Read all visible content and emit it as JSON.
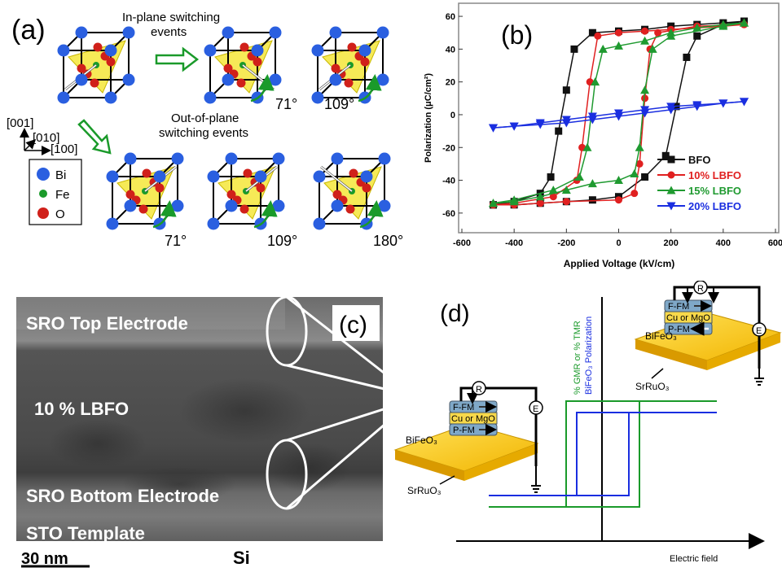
{
  "panel_a": {
    "label": "(a)",
    "inplane_title_line1": "In-plane switching",
    "inplane_title_line2": "events",
    "outplane_title_line1": "Out-of-plane",
    "outplane_title_line2": "switching events",
    "axes": {
      "z": "[001]",
      "y": "[010]",
      "x": "[100]"
    },
    "legend": [
      {
        "label": "Bi",
        "color": "#2a5fe0"
      },
      {
        "label": "Fe",
        "color": "#1a9a2a"
      },
      {
        "label": "O",
        "color": "#d0201a"
      }
    ],
    "angles_top": [
      "71°",
      "109°"
    ],
    "angles_bottom": [
      "71°",
      "109°",
      "180°"
    ]
  },
  "panel_b": {
    "label": "(b)",
    "chart_data": {
      "type": "line",
      "xlabel": "Applied Voltage (kV/cm)",
      "ylabel": "Polarization (μC/cm²)",
      "xlim": [
        -600,
        600
      ],
      "ylim": [
        -70,
        65
      ],
      "xticks": [
        "-600",
        "-400",
        "-200",
        "0",
        "200",
        "400",
        "600"
      ],
      "yticks": [
        "60",
        "40",
        "20",
        "0",
        "-20",
        "-40",
        "-60"
      ],
      "legend_position": "bottom-right",
      "series": [
        {
          "name": "BFO",
          "color": "#111111",
          "marker": "square",
          "upper": [
            [
              480,
              57
            ],
            [
              400,
              56
            ],
            [
              300,
              55
            ],
            [
              200,
              54
            ],
            [
              100,
              52
            ],
            [
              0,
              51
            ],
            [
              -100,
              50
            ],
            [
              -170,
              40
            ],
            [
              -200,
              15
            ],
            [
              -230,
              -10
            ],
            [
              -260,
              -38
            ],
            [
              -300,
              -48
            ],
            [
              -400,
              -53
            ],
            [
              -480,
              -55
            ]
          ],
          "lower": [
            [
              -480,
              -55
            ],
            [
              -400,
              -55
            ],
            [
              -300,
              -54
            ],
            [
              -200,
              -53
            ],
            [
              -100,
              -52
            ],
            [
              0,
              -50
            ],
            [
              100,
              -38
            ],
            [
              180,
              -25
            ],
            [
              220,
              5
            ],
            [
              260,
              35
            ],
            [
              300,
              48
            ],
            [
              400,
              55
            ],
            [
              480,
              57
            ]
          ]
        },
        {
          "name": "10% LBFO",
          "color": "#e02020",
          "marker": "circle",
          "upper": [
            [
              480,
              55
            ],
            [
              400,
              54
            ],
            [
              300,
              53
            ],
            [
              200,
              52
            ],
            [
              100,
              51
            ],
            [
              0,
              50
            ],
            [
              -80,
              48
            ],
            [
              -110,
              20
            ],
            [
              -140,
              -20
            ],
            [
              -160,
              -40
            ],
            [
              -250,
              -50
            ],
            [
              -400,
              -54
            ],
            [
              -480,
              -55
            ]
          ],
          "lower": [
            [
              -480,
              -55
            ],
            [
              -400,
              -55
            ],
            [
              -300,
              -54
            ],
            [
              -200,
              -53
            ],
            [
              0,
              -52
            ],
            [
              60,
              -48
            ],
            [
              80,
              -30
            ],
            [
              100,
              10
            ],
            [
              120,
              40
            ],
            [
              150,
              50
            ],
            [
              300,
              54
            ],
            [
              480,
              55
            ]
          ]
        },
        {
          "name": "15% LBFO",
          "color": "#1f9a30",
          "marker": "triangle-up",
          "upper": [
            [
              480,
              56
            ],
            [
              400,
              55
            ],
            [
              300,
              53
            ],
            [
              200,
              50
            ],
            [
              100,
              45
            ],
            [
              0,
              42
            ],
            [
              -60,
              40
            ],
            [
              -90,
              20
            ],
            [
              -120,
              -20
            ],
            [
              -150,
              -38
            ],
            [
              -250,
              -46
            ],
            [
              -400,
              -52
            ],
            [
              -480,
              -54
            ]
          ],
          "lower": [
            [
              -480,
              -54
            ],
            [
              -400,
              -53
            ],
            [
              -300,
              -50
            ],
            [
              -200,
              -46
            ],
            [
              -100,
              -42
            ],
            [
              0,
              -40
            ],
            [
              60,
              -36
            ],
            [
              80,
              -20
            ],
            [
              100,
              15
            ],
            [
              130,
              40
            ],
            [
              200,
              48
            ],
            [
              400,
              54
            ],
            [
              480,
              56
            ]
          ]
        },
        {
          "name": "20% LBFO",
          "color": "#1a2ee0",
          "marker": "triangle-down",
          "upper": [
            [
              480,
              8
            ],
            [
              400,
              7
            ],
            [
              300,
              5
            ],
            [
              200,
              3
            ],
            [
              100,
              1
            ],
            [
              0,
              -1
            ],
            [
              -100,
              -3
            ],
            [
              -200,
              -5
            ],
            [
              -300,
              -6
            ],
            [
              -400,
              -7
            ],
            [
              -480,
              -8
            ]
          ],
          "lower": [
            [
              -480,
              -8
            ],
            [
              -400,
              -7
            ],
            [
              -300,
              -5
            ],
            [
              -200,
              -3
            ],
            [
              -100,
              -1
            ],
            [
              0,
              1
            ],
            [
              100,
              3
            ],
            [
              200,
              5
            ],
            [
              300,
              6
            ],
            [
              400,
              7
            ],
            [
              480,
              8
            ]
          ]
        }
      ]
    }
  },
  "panel_c": {
    "label": "(c)",
    "layers": [
      "SRO Top Electrode",
      "10 % LBFO",
      "SRO Bottom Electrode",
      "STO Template"
    ],
    "scale_bar": "30 nm",
    "substrate": "Si"
  },
  "panel_d": {
    "label": "(d)",
    "y_label_1": "% GMR or % TMR",
    "y_label_2": "BiFeO₃ Polarization",
    "x_label": "Electric field",
    "device_left": {
      "layers": [
        "F-FM",
        "Cu or MgO",
        "P-FM"
      ],
      "film": "BiFeO₃",
      "electrode": "SrRuO₃",
      "r": "R",
      "e": "E"
    },
    "device_right": {
      "layers": [
        "F-FM",
        "Cu or MgO",
        "P-FM"
      ],
      "film": "BiFeO₃",
      "electrode": "SrRuO₃",
      "r": "R",
      "e": "E"
    }
  }
}
